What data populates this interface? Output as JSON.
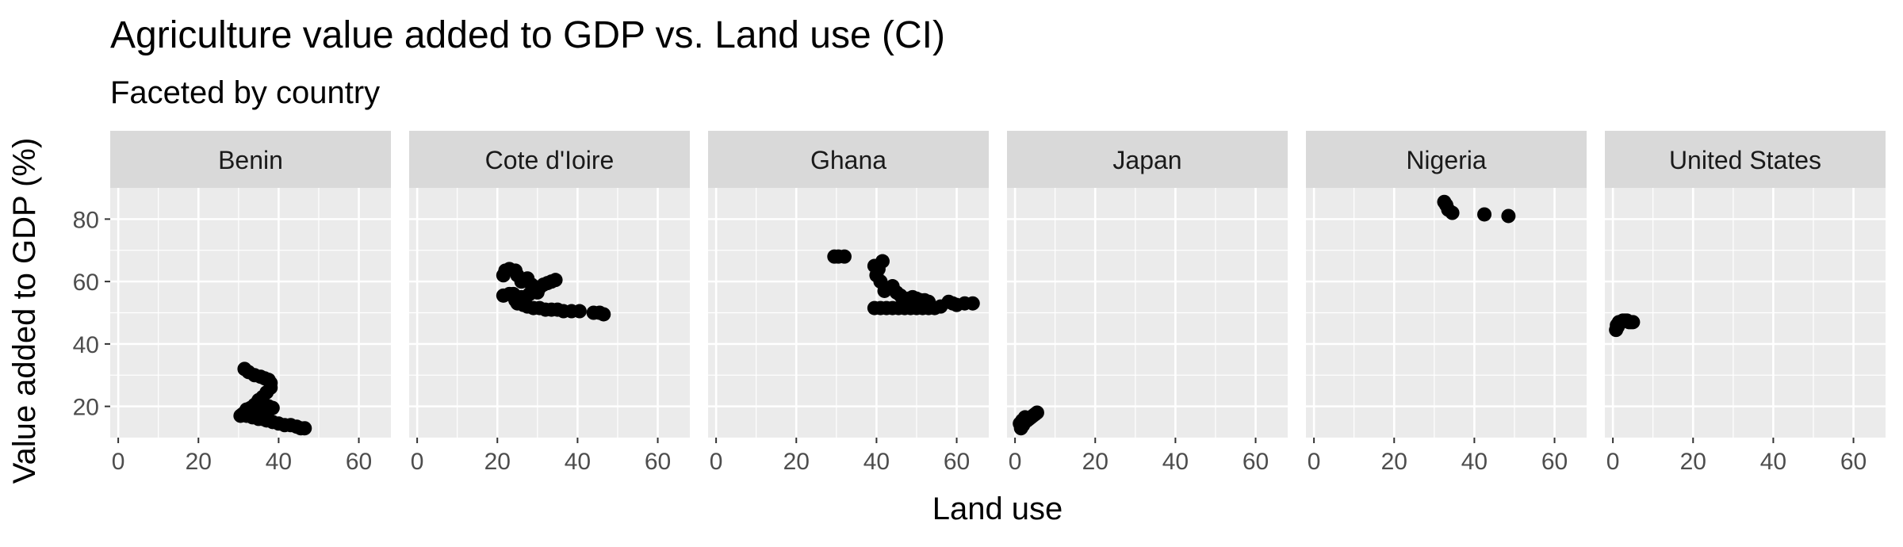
{
  "colors": {
    "panel_bg": "#ebebeb",
    "strip_bg": "#d9d9d9",
    "grid": "#ffffff",
    "point": "#000000",
    "tick": "#333333"
  },
  "chart_data": {
    "type": "scatter",
    "title": "Agriculture value added to GDP vs. Land use (CI)",
    "subtitle": "Faceted by country",
    "xlabel": "Land use",
    "ylabel": "Value added to GDP (%)",
    "xlim": [
      -2,
      68
    ],
    "ylim": [
      10,
      90
    ],
    "x_ticks": [
      0,
      20,
      40,
      60
    ],
    "y_ticks": [
      20,
      40,
      60,
      80
    ],
    "grid": true,
    "facets": [
      {
        "name": "Benin",
        "points": [
          [
            31.5,
            32
          ],
          [
            32.5,
            31
          ],
          [
            34,
            30
          ],
          [
            35.5,
            29.5
          ],
          [
            36.5,
            29
          ],
          [
            37.5,
            28.5
          ],
          [
            38,
            27.5
          ],
          [
            38,
            26
          ],
          [
            37,
            24.5
          ],
          [
            36,
            23
          ],
          [
            35,
            22
          ],
          [
            34.5,
            21
          ],
          [
            34,
            20.5
          ],
          [
            33,
            19.5
          ],
          [
            32,
            19
          ],
          [
            31.5,
            18
          ],
          [
            31,
            17.5
          ],
          [
            30.5,
            17
          ],
          [
            32,
            17
          ],
          [
            33.5,
            16.5
          ],
          [
            35,
            16
          ],
          [
            36,
            16
          ],
          [
            37,
            15.5
          ],
          [
            38.5,
            15
          ],
          [
            40,
            14.5
          ],
          [
            41.5,
            14
          ],
          [
            43,
            14
          ],
          [
            44.5,
            13.5
          ],
          [
            45.5,
            13
          ],
          [
            46.5,
            13
          ],
          [
            36,
            19
          ],
          [
            37.5,
            20
          ],
          [
            38.5,
            19.5
          ],
          [
            37,
            17
          ],
          [
            35.5,
            18
          ],
          [
            34.5,
            18.5
          ]
        ]
      },
      {
        "name": "Cote d'Ioire",
        "points": [
          [
            21.5,
            62
          ],
          [
            22,
            63.5
          ],
          [
            23,
            64
          ],
          [
            24.5,
            63.5
          ],
          [
            25,
            62
          ],
          [
            26,
            60
          ],
          [
            27.5,
            61
          ],
          [
            28.5,
            59
          ],
          [
            29,
            58.5
          ],
          [
            30.5,
            58
          ],
          [
            31.5,
            59
          ],
          [
            32.5,
            59.5
          ],
          [
            33.5,
            60
          ],
          [
            34.5,
            60.5
          ],
          [
            21.5,
            55.5
          ],
          [
            23,
            56
          ],
          [
            24,
            56
          ],
          [
            24.5,
            54
          ],
          [
            25,
            53
          ],
          [
            26.5,
            52.5
          ],
          [
            27.5,
            52
          ],
          [
            29,
            51.5
          ],
          [
            30.5,
            51.5
          ],
          [
            32,
            51
          ],
          [
            33.5,
            51
          ],
          [
            35,
            51
          ],
          [
            36.5,
            50.5
          ],
          [
            38.5,
            50.5
          ],
          [
            40.5,
            50.5
          ],
          [
            44,
            50
          ],
          [
            45.5,
            50
          ],
          [
            46.5,
            49.5
          ],
          [
            26,
            55
          ],
          [
            28,
            56
          ],
          [
            30,
            56.5
          ]
        ]
      },
      {
        "name": "Ghana",
        "points": [
          [
            29.5,
            68
          ],
          [
            30.5,
            68
          ],
          [
            32,
            68
          ],
          [
            39.5,
            65
          ],
          [
            40.5,
            64
          ],
          [
            41.5,
            66.5
          ],
          [
            40,
            62
          ],
          [
            41,
            60
          ],
          [
            42,
            57
          ],
          [
            44,
            58.5
          ],
          [
            45,
            56.5
          ],
          [
            46,
            55.5
          ],
          [
            47,
            54
          ],
          [
            48,
            54.5
          ],
          [
            49,
            55
          ],
          [
            50,
            54.5
          ],
          [
            51,
            54
          ],
          [
            52,
            54
          ],
          [
            53,
            53.5
          ],
          [
            39.5,
            51.5
          ],
          [
            41,
            51.5
          ],
          [
            42.5,
            51.5
          ],
          [
            44,
            51.5
          ],
          [
            45.5,
            51.5
          ],
          [
            47,
            51.5
          ],
          [
            48.5,
            51.5
          ],
          [
            50,
            51.5
          ],
          [
            51.5,
            51.5
          ],
          [
            53,
            51.5
          ],
          [
            54.5,
            51.5
          ],
          [
            56,
            52
          ],
          [
            58,
            53.5
          ],
          [
            59,
            53
          ],
          [
            60,
            52.5
          ],
          [
            62,
            53
          ],
          [
            64,
            53
          ]
        ]
      },
      {
        "name": "Japan",
        "points": [
          [
            1.5,
            13
          ],
          [
            2,
            14
          ],
          [
            2.5,
            15
          ],
          [
            3,
            15.5
          ],
          [
            3.5,
            16
          ],
          [
            4,
            16.5
          ],
          [
            4.5,
            17
          ],
          [
            5,
            17.5
          ],
          [
            5.5,
            18
          ],
          [
            1.2,
            14.5
          ],
          [
            1.8,
            15.5
          ],
          [
            2.5,
            16.5
          ]
        ]
      },
      {
        "name": "Nigeria",
        "points": [
          [
            32.5,
            85.5
          ],
          [
            33,
            84.5
          ],
          [
            33.5,
            83
          ],
          [
            34.5,
            82
          ],
          [
            42.5,
            81.5
          ],
          [
            48.5,
            81
          ]
        ]
      },
      {
        "name": "United States",
        "points": [
          [
            0.8,
            44.5
          ],
          [
            1.2,
            45.5
          ],
          [
            1.6,
            46.5
          ],
          [
            2,
            47
          ],
          [
            2.5,
            47.5
          ],
          [
            3,
            47.5
          ],
          [
            3.5,
            47.5
          ],
          [
            4,
            47
          ],
          [
            4.5,
            47
          ],
          [
            5,
            47
          ],
          [
            1,
            46
          ],
          [
            1.5,
            47
          ]
        ]
      }
    ]
  }
}
